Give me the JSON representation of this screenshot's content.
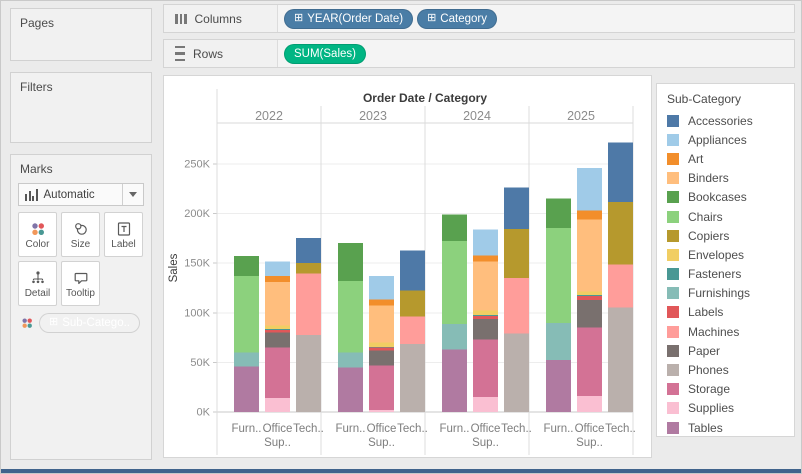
{
  "shelves": {
    "columns": {
      "label": "Columns",
      "pills": [
        {
          "text": "YEAR(Order Date)",
          "type": "dimension"
        },
        {
          "text": "Category",
          "type": "dimension"
        }
      ]
    },
    "rows": {
      "label": "Rows",
      "pills": [
        {
          "text": "SUM(Sales)",
          "type": "measure"
        }
      ]
    }
  },
  "sidebar": {
    "pages_label": "Pages",
    "filters_label": "Filters",
    "marks": {
      "label": "Marks",
      "mark_type": "Automatic",
      "buttons": [
        {
          "label": "Color"
        },
        {
          "label": "Size"
        },
        {
          "label": "Label"
        },
        {
          "label": "Detail"
        },
        {
          "label": "Tooltip"
        }
      ],
      "pill_text": "Sub-Catego.."
    }
  },
  "colors": {
    "dimension_pill": "#4a7da6",
    "measure_pill": "#00b583",
    "bottom_strip": "#40638c"
  },
  "chart_data": {
    "type": "bar",
    "stacked": true,
    "title": "Order Date / Category",
    "ylabel": "Sales",
    "value_unit": "K",
    "ylim": [
      0,
      291
    ],
    "grid": true,
    "legend_position": "right",
    "legend_title": "Sub-Category",
    "years": [
      "2022",
      "2023",
      "2024",
      "2025"
    ],
    "categories": [
      "Furniture",
      "Office Supplies",
      "Technology"
    ],
    "category_axis_labels_row1": [
      "Furn..",
      "Office",
      "Tech.."
    ],
    "category_axis_labels_row2": [
      "",
      "Sup..",
      ""
    ],
    "y_ticks": [
      {
        "value": 0,
        "label": "0K"
      },
      {
        "value": 50,
        "label": "50K"
      },
      {
        "value": 100,
        "label": "100K"
      },
      {
        "value": 150,
        "label": "150K"
      },
      {
        "value": 200,
        "label": "200K"
      },
      {
        "value": 250,
        "label": "250K"
      }
    ],
    "series": [
      {
        "name": "Accessories",
        "category": "Technology",
        "color": "#4e79a7",
        "values": [
          25.0,
          40.5,
          41.9,
          59.9
        ]
      },
      {
        "name": "Appliances",
        "category": "Office Supplies",
        "color": "#a0cbe8",
        "values": [
          14.9,
          23.6,
          26.1,
          42.9
        ]
      },
      {
        "name": "Art",
        "category": "Office Supplies",
        "color": "#f28e2b",
        "values": [
          6.1,
          6.1,
          6.0,
          9.0
        ]
      },
      {
        "name": "Binders",
        "category": "Office Supplies",
        "color": "#ffbe7d",
        "values": [
          43.5,
          37.5,
          49.7,
          72.8
        ]
      },
      {
        "name": "Bookcases",
        "category": "Furniture",
        "color": "#59a14f",
        "values": [
          20.0,
          38.5,
          26.3,
          30.0
        ]
      },
      {
        "name": "Chairs",
        "category": "Furniture",
        "color": "#8cd17d",
        "values": [
          77.2,
          71.7,
          83.9,
          95.6
        ]
      },
      {
        "name": "Copiers",
        "category": "Technology",
        "color": "#b6992d",
        "values": [
          10.9,
          26.1,
          49.6,
          62.9
        ]
      },
      {
        "name": "Envelopes",
        "category": "Office Supplies",
        "color": "#f1ce63",
        "values": [
          3.9,
          4.5,
          4.6,
          3.5
        ]
      },
      {
        "name": "Fasteners",
        "category": "Office Supplies",
        "color": "#499894",
        "values": [
          0.7,
          0.5,
          0.9,
          0.9
        ]
      },
      {
        "name": "Furnishings",
        "category": "Furniture",
        "color": "#86bcb6",
        "values": [
          13.8,
          15.1,
          25.6,
          37.2
        ]
      },
      {
        "name": "Labels",
        "category": "Office Supplies",
        "color": "#e15759",
        "values": [
          2.8,
          3.0,
          2.8,
          3.9
        ]
      },
      {
        "name": "Machines",
        "category": "Technology",
        "color": "#ff9d9a",
        "values": [
          62.0,
          27.8,
          55.9,
          43.5
        ]
      },
      {
        "name": "Paper",
        "category": "Office Supplies",
        "color": "#79706e",
        "values": [
          14.8,
          15.2,
          20.6,
          27.7
        ]
      },
      {
        "name": "Phones",
        "category": "Technology",
        "color": "#bab0ac",
        "values": [
          77.4,
          68.4,
          79.0,
          105.3
        ]
      },
      {
        "name": "Storage",
        "category": "Office Supplies",
        "color": "#d37295",
        "values": [
          51.3,
          45.0,
          58.3,
          69.2
        ]
      },
      {
        "name": "Supplies",
        "category": "Office Supplies",
        "color": "#fabfd2",
        "values": [
          13.9,
          1.8,
          15.0,
          16.1
        ]
      },
      {
        "name": "Tables",
        "category": "Furniture",
        "color": "#b07aa1",
        "values": [
          46.1,
          45.1,
          63.1,
          52.6
        ]
      }
    ]
  }
}
